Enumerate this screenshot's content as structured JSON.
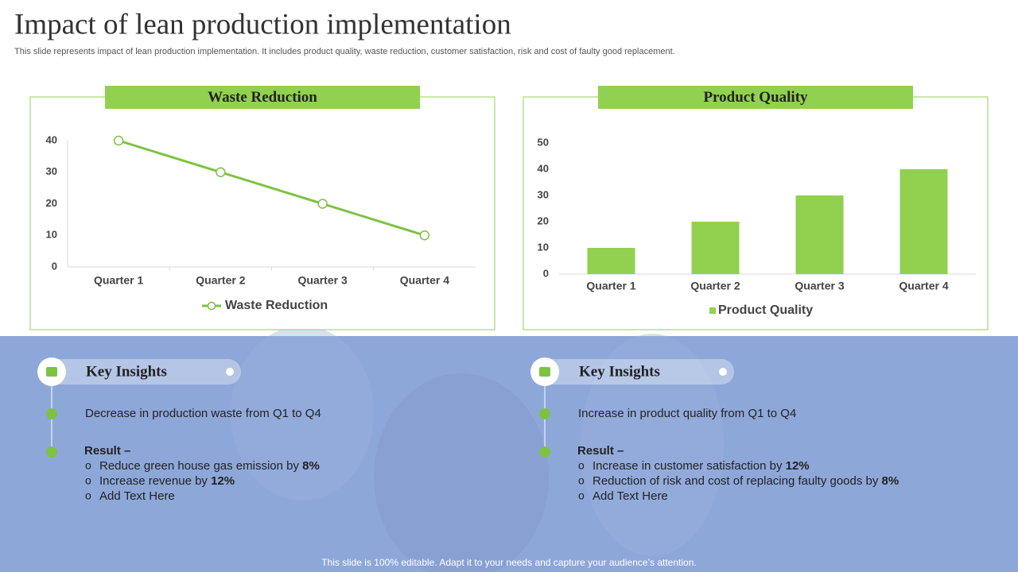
{
  "title": "Impact of lean production implementation",
  "subtitle": "This slide represents impact of lean production implementation. It includes product quality, waste reduction, customer satisfaction, risk and cost of faulty good replacement.",
  "chart_data": [
    {
      "type": "line",
      "title": "Waste Reduction",
      "categories": [
        "Quarter 1",
        "Quarter 2",
        "Quarter 3",
        "Quarter 4"
      ],
      "series": [
        {
          "name": "Waste Reduction",
          "color": "#7dc242",
          "values": [
            40,
            30,
            20,
            10
          ]
        }
      ],
      "ylim": [
        0,
        40
      ],
      "yticks": [
        0,
        10,
        20,
        30,
        40
      ],
      "legend": "bottom"
    },
    {
      "type": "bar",
      "title": "Product Quality",
      "categories": [
        "Quarter 1",
        "Quarter 2",
        "Quarter 3",
        "Quarter 4"
      ],
      "series": [
        {
          "name": "Product Quality",
          "color": "#92d050",
          "values": [
            10,
            20,
            30,
            40
          ]
        }
      ],
      "ylim": [
        0,
        50
      ],
      "yticks": [
        0,
        10,
        20,
        30,
        40,
        50
      ],
      "legend": "bottom"
    }
  ],
  "insights": [
    {
      "heading": "Key Insights",
      "point": "Decrease in production waste from Q1 to Q4",
      "result_label": "Result –",
      "items": [
        {
          "text": "Reduce green house gas emission by",
          "bold": "8%"
        },
        {
          "text": "Increase revenue by",
          "bold": "12%"
        },
        {
          "text": "Add Text Here"
        }
      ]
    },
    {
      "heading": "Key Insights",
      "point": "Increase in product quality from Q1 to Q4",
      "result_label": "Result –",
      "items": [
        {
          "text": "Increase in customer satisfaction by",
          "bold": "12%"
        },
        {
          "text": "Reduction of risk and cost of replacing faulty goods by",
          "bold": "8%"
        },
        {
          "text": "Add Text Here"
        }
      ]
    }
  ],
  "footer": "This slide is 100% editable. Adapt it to your needs and capture your audience’s attention."
}
